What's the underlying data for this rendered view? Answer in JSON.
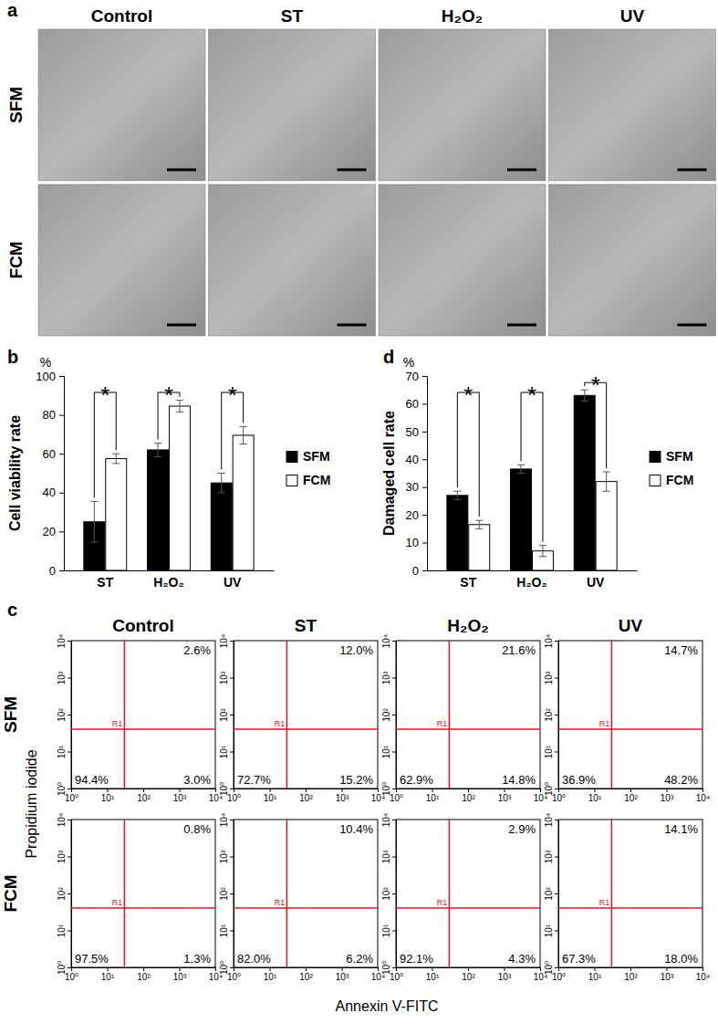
{
  "panel_a": {
    "label": "a",
    "columns": [
      "Control",
      "ST",
      "H₂O₂",
      "UV"
    ],
    "rows": [
      "SFM",
      "FCM"
    ]
  },
  "chart_data": [
    {
      "type": "bar",
      "label": "b",
      "unit": "%",
      "ylabel": "Cell viability rate",
      "categories": [
        "ST",
        "H₂O₂",
        "UV"
      ],
      "ylim": [
        0,
        100
      ],
      "yticks": [
        0,
        20,
        40,
        60,
        80,
        100
      ],
      "legend": "right",
      "annotations": [
        "*",
        "*",
        "*"
      ],
      "series": [
        {
          "name": "SFM",
          "color": "#000000",
          "values": [
            25,
            62,
            45
          ],
          "errors": [
            10.5,
            3.5,
            5
          ]
        },
        {
          "name": "FCM",
          "color": "#ffffff",
          "values": [
            57.5,
            84.5,
            69.5
          ],
          "errors": [
            2.5,
            3,
            4.5
          ]
        }
      ]
    },
    {
      "type": "bar",
      "label": "d",
      "unit": "%",
      "ylabel": "Damaged cell rate",
      "categories": [
        "ST",
        "H₂O₂",
        "UV"
      ],
      "ylim": [
        0,
        70
      ],
      "yticks": [
        0,
        10,
        20,
        30,
        40,
        50,
        60,
        70
      ],
      "legend": "right",
      "annotations": [
        "*",
        "*",
        "*"
      ],
      "series": [
        {
          "name": "SFM",
          "color": "#000000",
          "values": [
            27,
            36.5,
            63
          ],
          "errors": [
            1.5,
            1.5,
            2
          ]
        },
        {
          "name": "FCM",
          "color": "#ffffff",
          "values": [
            16.5,
            7,
            32
          ],
          "errors": [
            1.5,
            2,
            3.5
          ]
        }
      ]
    },
    {
      "type": "quadrant",
      "label": "c",
      "xlabel": "Annexin V-FITC",
      "ylabel": "Propidium iodide",
      "columns": [
        "Control",
        "ST",
        "H₂O₂",
        "UV"
      ],
      "rows": [
        "SFM",
        "FCM"
      ],
      "log": true,
      "color": "#e8141c",
      "xlim": [
        1,
        10000
      ],
      "ylim": [
        1,
        10000
      ],
      "xticks": [
        {
          "value": 1,
          "label": "10⁰"
        },
        {
          "value": 10,
          "label": "10¹"
        },
        {
          "value": 100,
          "label": "10²"
        },
        {
          "value": 1000,
          "label": "10³"
        },
        {
          "value": 10000,
          "label": "10⁴"
        }
      ],
      "yticks": [
        {
          "value": 1,
          "label": "10⁰"
        },
        {
          "value": 10,
          "label": "10¹"
        },
        {
          "value": 100,
          "label": "10²"
        },
        {
          "value": 1000,
          "label": "10³"
        },
        {
          "value": 10000,
          "label": "10⁴"
        }
      ],
      "gate": {
        "x": 30,
        "y": 40,
        "label": "R1"
      },
      "panels": [
        [
          {
            "values": [
              2.6,
              94.4,
              3.0
            ],
            "value_labels": [
              "2.6%",
              "94.4%",
              "3.0%"
            ]
          },
          {
            "values": [
              12.0,
              72.7,
              15.2
            ],
            "value_labels": [
              "12.0%",
              "72.7%",
              "15.2%"
            ]
          },
          {
            "values": [
              21.6,
              62.9,
              14.8
            ],
            "value_labels": [
              "21.6%",
              "62.9%",
              "14.8%"
            ]
          },
          {
            "values": [
              14.7,
              36.9,
              48.2
            ],
            "value_labels": [
              "14.7%",
              "36.9%",
              "48.2%"
            ]
          }
        ],
        [
          {
            "values": [
              0.8,
              97.5,
              1.3
            ],
            "value_labels": [
              "0.8%",
              "97.5%",
              "1.3%"
            ]
          },
          {
            "values": [
              10.4,
              82.0,
              6.2
            ],
            "value_labels": [
              "10.4%",
              "82.0%",
              "6.2%"
            ]
          },
          {
            "values": [
              2.9,
              92.1,
              4.3
            ],
            "value_labels": [
              "2.9%",
              "92.1%",
              "4.3%"
            ]
          },
          {
            "values": [
              14.1,
              67.3,
              18.0
            ],
            "value_labels": [
              "14.1%",
              "67.3%",
              "18.0%"
            ]
          }
        ]
      ]
    }
  ]
}
